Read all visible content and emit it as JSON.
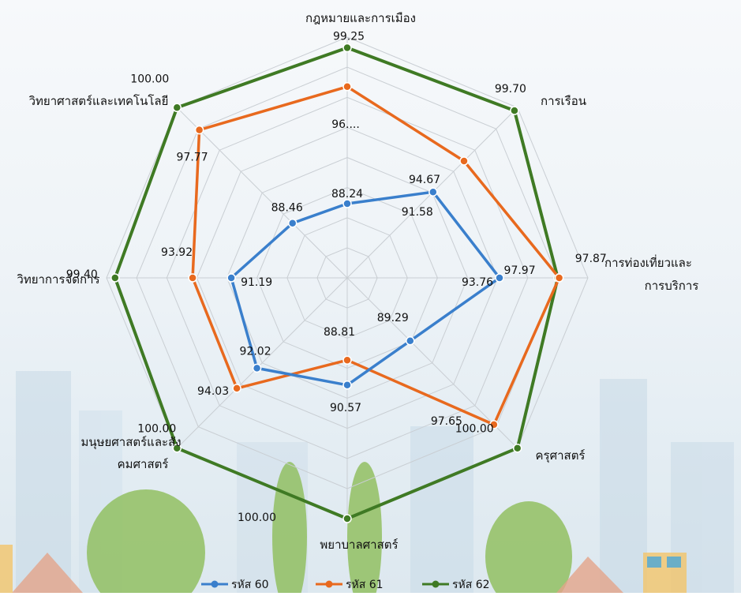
{
  "colors": {
    "series60": "#3a7fcc",
    "series61": "#e8691e",
    "series62": "#3f7a24",
    "grid": "#c9ced3",
    "bg_building": "#c7d9e6",
    "bg_tree": "#92c061"
  },
  "chart_data": {
    "type": "radar",
    "title": "",
    "categories": [
      "กฎหมายและการเมือง",
      "การเรือน",
      "การท่องเที่ยวและการบริการ",
      "ครุศาสตร์",
      "พยาบาลศาสตร์",
      "มนุษยศาสตร์และสังคมศาสตร์",
      "วิทยาการจัดการ",
      "วิทยาศาสตร์และเทคโนโลยี"
    ],
    "series": [
      {
        "name": "รหัส 60",
        "values": [
          88.24,
          91.58,
          93.76,
          89.29,
          90.57,
          92.02,
          91.19,
          88.46
        ]
      },
      {
        "name": "รหัส 61",
        "values": [
          96.5,
          94.67,
          97.97,
          97.65,
          88.81,
          94.03,
          93.92,
          97.77
        ]
      },
      {
        "name": "รหัส 62",
        "values": [
          99.25,
          99.7,
          97.87,
          100.0,
          100.0,
          100.0,
          99.4,
          100.0
        ]
      }
    ],
    "value_labels": [
      [
        "88.24",
        "91.58",
        "93.76",
        "89.29",
        "90.57",
        "92.02",
        "91.19",
        "88.46"
      ],
      [
        "96....",
        "94.67",
        "97.97",
        "97.65",
        "88.81",
        "94.03",
        "93.92",
        "97.77"
      ],
      [
        "99.25",
        "99.70",
        "97.87",
        "100.00",
        "100.00",
        "100.00",
        "99.40",
        "100.00"
      ]
    ],
    "range": [
      83,
      100
    ],
    "grid": true,
    "legend_position": "bottom"
  }
}
